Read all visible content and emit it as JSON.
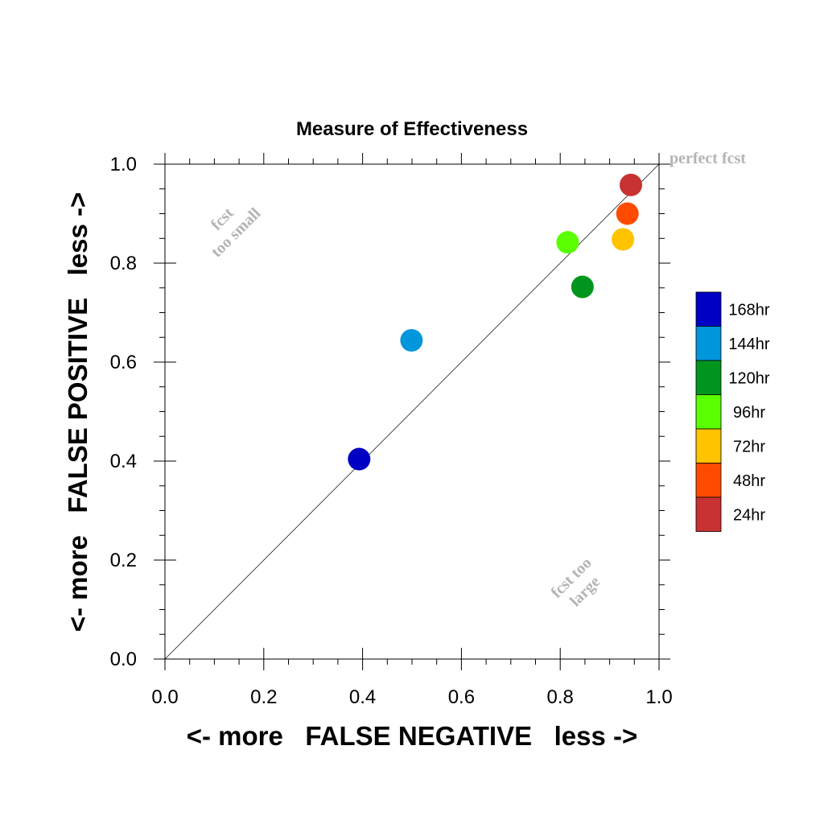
{
  "chart_data": {
    "type": "scatter",
    "title": "Measure of Effectiveness",
    "xlabel": "<- more   FALSE NEGATIVE   less ->",
    "ylabel": "<- more   FALSE POSITIVE   less ->",
    "xlim": [
      0.0,
      1.0
    ],
    "ylim": [
      0.0,
      1.0
    ],
    "xticks": [
      "0.0",
      "0.2",
      "0.4",
      "0.6",
      "0.8",
      "1.0"
    ],
    "yticks": [
      "0.0",
      "0.2",
      "0.4",
      "0.6",
      "0.8",
      "1.0"
    ],
    "grid": false,
    "reference_line": "diagonal y = x",
    "annotations": {
      "perfect": "perfect fcst",
      "too_small": [
        "fcst",
        "too small"
      ],
      "too_large": [
        "fcst too",
        "large"
      ]
    },
    "legend_position": "right",
    "series": [
      {
        "name": "168hr",
        "color": "#0000c4",
        "x": 0.393,
        "y": 0.404
      },
      {
        "name": "144hr",
        "color": "#0096dc",
        "x": 0.499,
        "y": 0.644
      },
      {
        "name": "120hr",
        "color": "#00961e",
        "x": 0.845,
        "y": 0.752
      },
      {
        "name": "96hr",
        "color": "#5aff00",
        "x": 0.815,
        "y": 0.842
      },
      {
        "name": "72hr",
        "color": "#ffc300",
        "x": 0.927,
        "y": 0.848
      },
      {
        "name": "48hr",
        "color": "#ff4b00",
        "x": 0.936,
        "y": 0.9
      },
      {
        "name": "24hr",
        "color": "#c83232",
        "x": 0.943,
        "y": 0.958
      }
    ]
  }
}
